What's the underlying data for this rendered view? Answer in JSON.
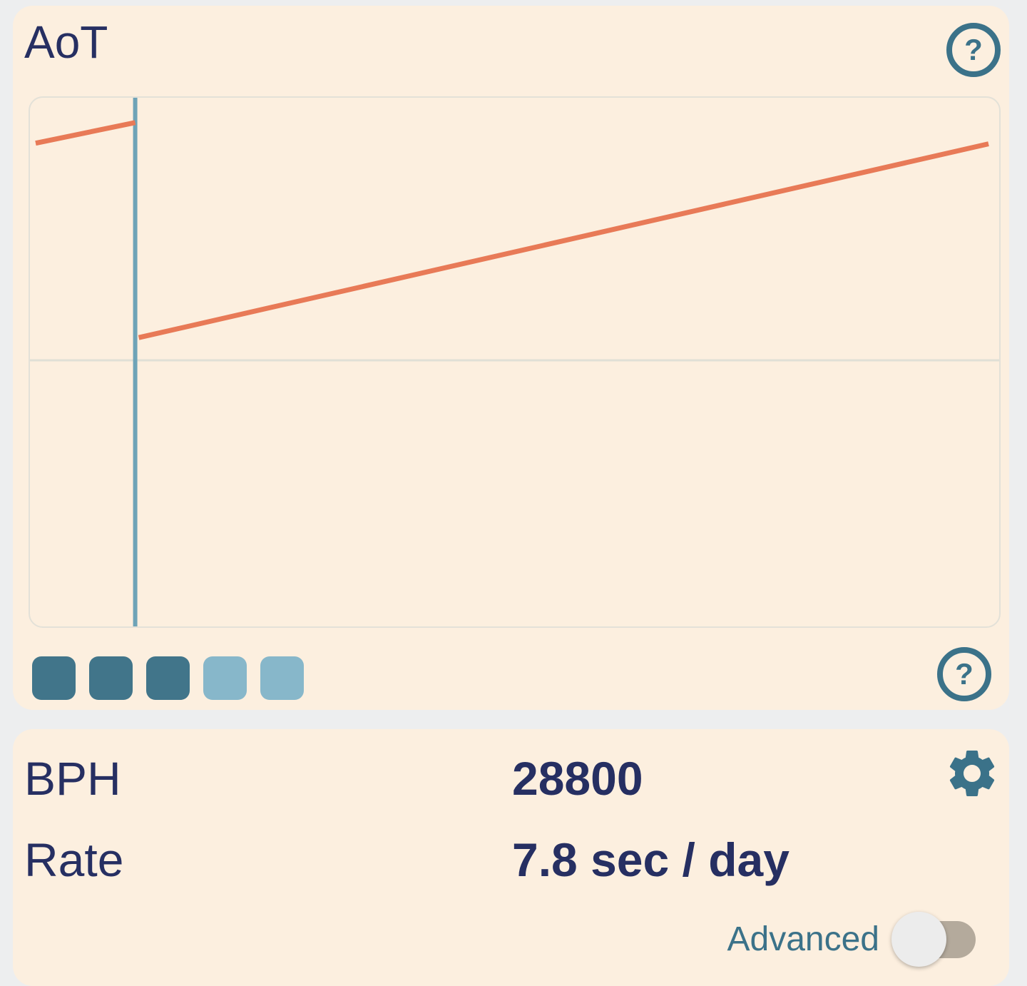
{
  "colors": {
    "page_bg": "#edeeef",
    "card_bg": "#fcefdf",
    "navy_text": "#262f62",
    "teal_accent": "#3b7289",
    "trace_orange": "#e87a57",
    "marker_blue": "#6ea3b7",
    "grid_gray": "#e0dfd6",
    "signal_strong": "#41758a",
    "signal_weak": "#87b7ca",
    "toggle_track": "#b4aa9c",
    "toggle_knob": "#ececec"
  },
  "top_card": {
    "title": "AoT",
    "help_glyph": "?",
    "signal": {
      "blocks": [
        "strong",
        "strong",
        "strong",
        "weak",
        "weak"
      ],
      "strength": "3 of 5"
    }
  },
  "chart_data": {
    "type": "line",
    "title": "AoT",
    "xlabel": "",
    "ylabel": "",
    "axes_labels": "none",
    "grid": "center-horizontal-line-only",
    "x_range": [
      0,
      1363
    ],
    "y_range": [
      0,
      745
    ],
    "midline_y": 370,
    "marker_x": 148,
    "marker_color": "#6ea3b7",
    "series": [
      {
        "name": "rate-trace",
        "color": "#e87a57",
        "segments": [
          {
            "x1": 8,
            "y1": 64,
            "x2": 148,
            "y2": 35
          },
          {
            "x1": 153,
            "y1": 338,
            "x2": 1348,
            "y2": 65
          }
        ]
      }
    ]
  },
  "bottom_card": {
    "rows": [
      {
        "label": "BPH",
        "value": "28800"
      },
      {
        "label": "Rate",
        "value": "7.8 sec / day"
      }
    ],
    "advanced_label": "Advanced",
    "advanced_toggle_state": "off"
  }
}
